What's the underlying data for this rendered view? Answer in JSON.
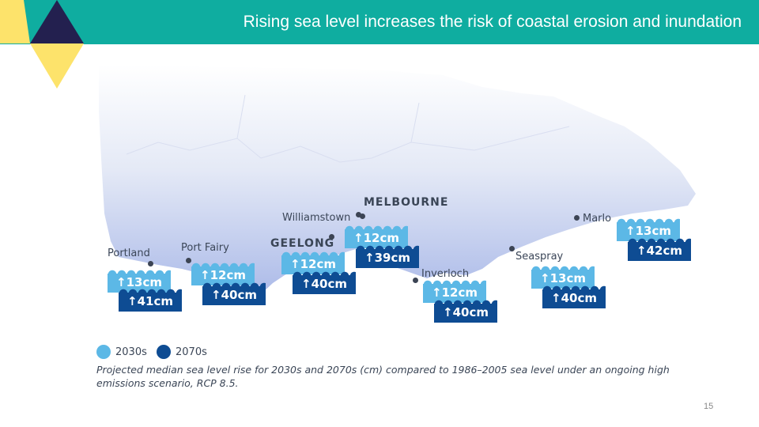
{
  "title": "Rising sea level increases the risk of coastal erosion and inundation",
  "map": {
    "cities": [
      {
        "name": "MELBOURNE"
      },
      {
        "name": "Williamstown"
      },
      {
        "name": "GEELONG"
      },
      {
        "name": "Portland"
      },
      {
        "name": "Port Fairy"
      },
      {
        "name": "Inverloch"
      },
      {
        "name": "Seaspray"
      },
      {
        "name": "Marlo"
      }
    ],
    "badges": [
      {
        "place": "Portland",
        "b2030": "↑13cm",
        "b2070": "↑41cm"
      },
      {
        "place": "Port Fairy",
        "b2030": "↑12cm",
        "b2070": "↑40cm"
      },
      {
        "place": "Geelong",
        "b2030": "↑12cm",
        "b2070": "↑40cm"
      },
      {
        "place": "Williamstown",
        "b2030": "↑12cm",
        "b2070": "↑39cm"
      },
      {
        "place": "Inverloch",
        "b2030": "↑12cm",
        "b2070": "↑40cm"
      },
      {
        "place": "Seaspray",
        "b2030": "↑13cm",
        "b2070": "↑40cm"
      },
      {
        "place": "Marlo",
        "b2030": "↑13cm",
        "b2070": "↑42cm"
      }
    ]
  },
  "legend": {
    "label_2030": "2030s",
    "label_2070": "2070s",
    "color_2030": "#5cb8e6",
    "color_2070": "#0e4c93"
  },
  "caption": "Projected median sea level rise for 2030s and 2070s (cm) compared to 1986–2005 sea level under an ongoing high emissions scenario, RCP 8.5.",
  "page_number": "15",
  "colors": {
    "header": "#0fada0",
    "yellow": "#fde36b",
    "navy": "#23204f"
  }
}
